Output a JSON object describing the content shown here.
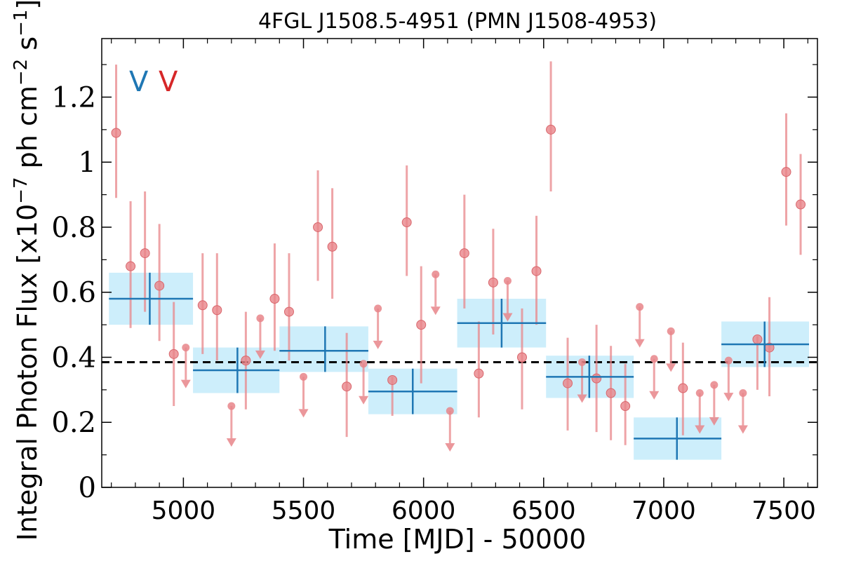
{
  "chart_data": {
    "type": "scatter",
    "title": "4FGL J1508.5-4951 (PMN J1508-4953)",
    "xlabel": "Time [MJD] - 50000",
    "ylabel": "Integral Photon Flux [x10^-7 ph cm^-2 s^-1]",
    "xlim": [
      4660,
      7640
    ],
    "ylim": [
      0,
      1.38
    ],
    "xticks": [
      5000,
      5500,
      6000,
      6500,
      7000,
      7500
    ],
    "yticks": [
      0,
      0.2,
      0.4,
      0.6,
      0.8,
      1,
      1.2
    ],
    "ytick_labels": [
      "0",
      "0.2",
      "0.4",
      "0.6",
      "0.8",
      "1",
      "1.2"
    ],
    "legend_marks": [
      {
        "text": "V",
        "color": "#1f77b4"
      },
      {
        "text": "V",
        "color": "#d62728"
      }
    ],
    "mean_line": {
      "y": 0.385,
      "style": "dashed",
      "color": "#000000"
    },
    "series": [
      {
        "role": "short_bins",
        "color": "#e8858a",
        "points": [
          {
            "x": 4720,
            "y": 1.09,
            "ylo": 0.89,
            "yhi": 1.3
          },
          {
            "x": 4780,
            "y": 0.68,
            "ylo": 0.49,
            "yhi": 0.88
          },
          {
            "x": 4840,
            "y": 0.72,
            "ylo": 0.54,
            "yhi": 0.91
          },
          {
            "x": 4900,
            "y": 0.62,
            "ylo": 0.45,
            "yhi": 0.81
          },
          {
            "x": 4960,
            "y": 0.41,
            "ylo": 0.25,
            "yhi": 0.57
          },
          {
            "x": 5080,
            "y": 0.56,
            "ylo": 0.41,
            "yhi": 0.72
          },
          {
            "x": 5140,
            "y": 0.545,
            "ylo": 0.39,
            "yhi": 0.72
          },
          {
            "x": 5260,
            "y": 0.39,
            "ylo": 0.24,
            "yhi": 0.54
          },
          {
            "x": 5380,
            "y": 0.58,
            "ylo": 0.42,
            "yhi": 0.75
          },
          {
            "x": 5440,
            "y": 0.54,
            "ylo": 0.39,
            "yhi": 0.72
          },
          {
            "x": 5560,
            "y": 0.8,
            "ylo": 0.635,
            "yhi": 0.975
          },
          {
            "x": 5620,
            "y": 0.74,
            "ylo": 0.58,
            "yhi": 0.92
          },
          {
            "x": 5680,
            "y": 0.31,
            "ylo": 0.155,
            "yhi": 0.475
          },
          {
            "x": 5870,
            "y": 0.33,
            "ylo": 0.22,
            "yhi": 0.34
          },
          {
            "x": 5930,
            "y": 0.815,
            "ylo": 0.65,
            "yhi": 0.99
          },
          {
            "x": 5990,
            "y": 0.5,
            "ylo": 0.32,
            "yhi": 0.68
          },
          {
            "x": 6170,
            "y": 0.72,
            "ylo": 0.55,
            "yhi": 0.9
          },
          {
            "x": 6230,
            "y": 0.35,
            "ylo": 0.215,
            "yhi": 0.51
          },
          {
            "x": 6290,
            "y": 0.63,
            "ylo": 0.47,
            "yhi": 0.795
          },
          {
            "x": 6410,
            "y": 0.4,
            "ylo": 0.24,
            "yhi": 0.55
          },
          {
            "x": 6470,
            "y": 0.665,
            "ylo": 0.5,
            "yhi": 0.835
          },
          {
            "x": 6530,
            "y": 1.1,
            "ylo": 0.91,
            "yhi": 1.31
          },
          {
            "x": 6600,
            "y": 0.32,
            "ylo": 0.175,
            "yhi": 0.46
          },
          {
            "x": 6720,
            "y": 0.335,
            "ylo": 0.17,
            "yhi": 0.5
          },
          {
            "x": 6780,
            "y": 0.29,
            "ylo": 0.145,
            "yhi": 0.435
          },
          {
            "x": 6840,
            "y": 0.25,
            "ylo": 0.13,
            "yhi": 0.38
          },
          {
            "x": 7080,
            "y": 0.305,
            "ylo": 0.16,
            "yhi": 0.445
          },
          {
            "x": 7390,
            "y": 0.455,
            "ylo": 0.3,
            "yhi": 0.465
          },
          {
            "x": 7440,
            "y": 0.43,
            "ylo": 0.28,
            "yhi": 0.585
          },
          {
            "x": 7510,
            "y": 0.97,
            "ylo": 0.805,
            "yhi": 1.15
          },
          {
            "x": 7570,
            "y": 0.87,
            "ylo": 0.715,
            "yhi": 1.025
          }
        ]
      },
      {
        "role": "upper_limits",
        "color": "#e8858a",
        "points": [
          {
            "x": 5010,
            "y": 0.43
          },
          {
            "x": 5200,
            "y": 0.25
          },
          {
            "x": 5320,
            "y": 0.52
          },
          {
            "x": 5500,
            "y": 0.34
          },
          {
            "x": 5750,
            "y": 0.38
          },
          {
            "x": 5810,
            "y": 0.55
          },
          {
            "x": 6050,
            "y": 0.655
          },
          {
            "x": 6110,
            "y": 0.235
          },
          {
            "x": 6350,
            "y": 0.635
          },
          {
            "x": 6660,
            "y": 0.385
          },
          {
            "x": 6900,
            "y": 0.555
          },
          {
            "x": 6960,
            "y": 0.395
          },
          {
            "x": 7030,
            "y": 0.48
          },
          {
            "x": 7150,
            "y": 0.29
          },
          {
            "x": 7210,
            "y": 0.315
          },
          {
            "x": 7270,
            "y": 0.39
          },
          {
            "x": 7330,
            "y": 0.29
          }
        ]
      },
      {
        "role": "long_bins",
        "color": "#1f77b4",
        "band_color": "#cdeefb",
        "points": [
          {
            "x": 4860,
            "xlo": 4690,
            "xhi": 5040,
            "y": 0.58,
            "ylo": 0.5,
            "yhi": 0.66
          },
          {
            "x": 5225,
            "xlo": 5040,
            "xhi": 5400,
            "y": 0.36,
            "ylo": 0.29,
            "yhi": 0.43
          },
          {
            "x": 5590,
            "xlo": 5400,
            "xhi": 5770,
            "y": 0.42,
            "ylo": 0.355,
            "yhi": 0.495
          },
          {
            "x": 5955,
            "xlo": 5770,
            "xhi": 6140,
            "y": 0.295,
            "ylo": 0.225,
            "yhi": 0.365
          },
          {
            "x": 6325,
            "xlo": 6140,
            "xhi": 6510,
            "y": 0.505,
            "ylo": 0.43,
            "yhi": 0.58
          },
          {
            "x": 6690,
            "xlo": 6510,
            "xhi": 6875,
            "y": 0.34,
            "ylo": 0.275,
            "yhi": 0.405
          },
          {
            "x": 7055,
            "xlo": 6875,
            "xhi": 7240,
            "y": 0.15,
            "ylo": 0.085,
            "yhi": 0.215
          },
          {
            "x": 7420,
            "xlo": 7240,
            "xhi": 7605,
            "y": 0.44,
            "ylo": 0.37,
            "yhi": 0.51
          }
        ]
      }
    ]
  }
}
